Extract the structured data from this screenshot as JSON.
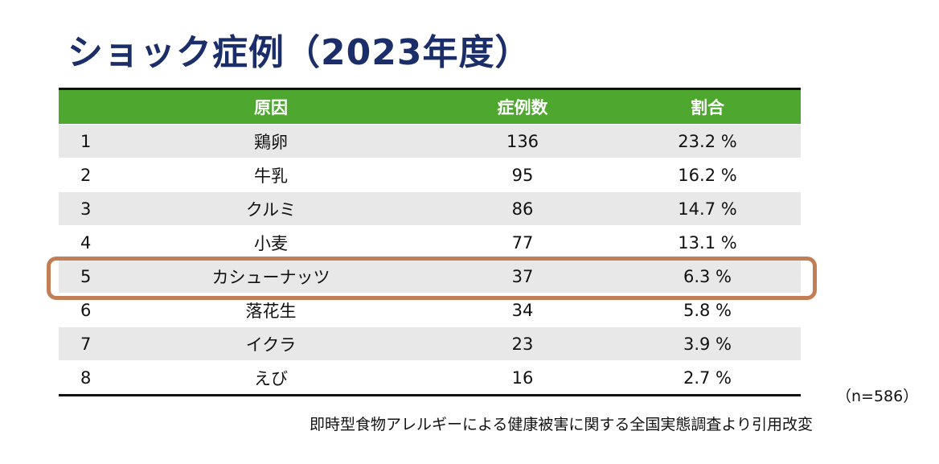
{
  "title": "ショック症例（2023年度）",
  "table": {
    "headers": {
      "rank": "",
      "cause": "原因",
      "count": "症例数",
      "ratio": "割合"
    },
    "rows": [
      {
        "rank": "1",
        "cause": "鶏卵",
        "count": "136",
        "ratio": "23.2 %"
      },
      {
        "rank": "2",
        "cause": "牛乳",
        "count": "95",
        "ratio": "16.2 %"
      },
      {
        "rank": "3",
        "cause": "クルミ",
        "count": "86",
        "ratio": "14.7 %"
      },
      {
        "rank": "4",
        "cause": "小麦",
        "count": "77",
        "ratio": "13.1 %"
      },
      {
        "rank": "5",
        "cause": "カシューナッツ",
        "count": "37",
        "ratio": "6.3 %"
      },
      {
        "rank": "6",
        "cause": "落花生",
        "count": "34",
        "ratio": "5.8 %"
      },
      {
        "rank": "7",
        "cause": "イクラ",
        "count": "23",
        "ratio": "3.9 %"
      },
      {
        "rank": "8",
        "cause": "えび",
        "count": "16",
        "ratio": "2.7 %"
      }
    ]
  },
  "sample_note": "（n=586）",
  "source": "即時型食物アレルギーによる健康被害に関する全国実態調査より引用改変",
  "colors": {
    "title": "#1b2e69",
    "header_bg": "#4ea72e",
    "stripe_bg": "#e8e8e8",
    "highlight_border": "#c27f55"
  }
}
